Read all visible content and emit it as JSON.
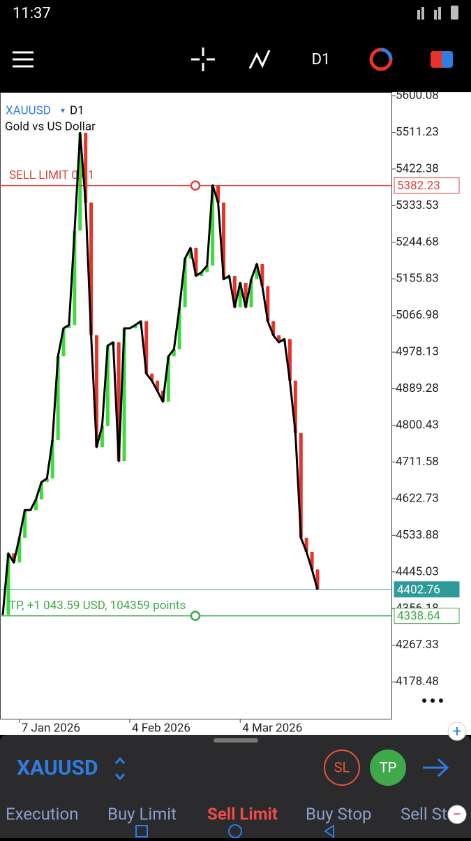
{
  "status_bar": {
    "time": "11:37"
  },
  "toolbar": {
    "timeframe": "D1"
  },
  "chart_data": {
    "type": "line",
    "symbol": "XAUUSD",
    "timeframe": "D1",
    "subtitle": "Gold vs US Dollar",
    "categories": [
      null,
      null,
      null,
      "7 Jan 2026",
      null,
      null,
      null,
      null,
      null,
      null,
      null,
      null,
      null,
      null,
      null,
      null,
      null,
      null,
      null,
      null,
      null,
      null,
      null,
      "4 Feb 2026",
      null,
      null,
      null,
      null,
      null,
      null,
      null,
      null,
      null,
      null,
      null,
      null,
      null,
      null,
      null,
      null,
      null,
      null,
      null,
      "4 Mar 2026",
      null,
      null,
      null,
      null,
      null,
      null,
      null,
      null,
      null,
      null,
      null,
      null,
      null,
      null
    ],
    "values": [
      4341,
      4490,
      4468,
      4528,
      4595,
      4595,
      4621,
      4663,
      4672,
      4765,
      4968,
      5036,
      5044,
      5273,
      5510,
      5341,
      5019,
      4748,
      4799,
      4994,
      5002,
      4714,
      5036,
      5036,
      5044,
      5053,
      4926,
      4909,
      4884,
      4858,
      4968,
      4985,
      5087,
      5205,
      5231,
      5163,
      5172,
      5188,
      5383,
      5341,
      5155,
      5163,
      5087,
      5146,
      5087,
      5155,
      5192,
      5138,
      5053,
      5019,
      5002,
      5010,
      4909,
      4782,
      4528,
      4494,
      4451,
      4402
    ],
    "color": "#000000",
    "up_color": "#3ddc3d",
    "down_color": "#e8332a",
    "ylim": [
      4087.3,
      5606.9
    ],
    "yticks": [
      5600.08,
      5511.23,
      5422.38,
      5333.53,
      5244.68,
      5155.83,
      5066.98,
      4978.13,
      4889.28,
      4800.43,
      4711.58,
      4622.73,
      4533.88,
      4445.03,
      4356.18,
      4267.33,
      4178.48
    ],
    "sell_limit": {
      "label": "SELL LIMIT 0.01",
      "price": 5382.23,
      "color": "#d9443a"
    },
    "take_profit": {
      "label": "TP, +1 043.59 USD, 104359 points",
      "price": 4338.64,
      "color": "#3fa84a"
    },
    "bid": {
      "price": 4402.76,
      "color": "#2e9a9a"
    }
  },
  "order_panel": {
    "symbol": "XAUUSD",
    "sl": "SL",
    "tp": "TP",
    "tabs": [
      "Execution",
      "Buy Limit",
      "Sell Limit",
      "Buy Stop",
      "Sell Stop"
    ],
    "active_tab": 2
  }
}
